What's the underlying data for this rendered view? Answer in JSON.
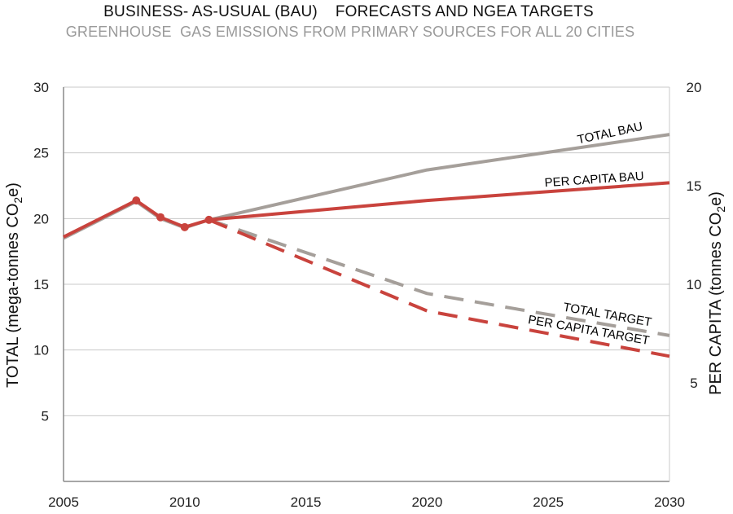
{
  "chart_data": {
    "type": "line",
    "title": "BUSINESS- AS-USUAL (BAU)    FORECASTS AND NGEA TARGETS",
    "subtitle": "GREENHOUSE  GAS EMISSIONS FROM PRIMARY SOURCES FOR ALL 20 CITIES",
    "ylabel_left": {
      "pre": "TOTAL (mega-tonnes CO",
      "sub": "2",
      "post": "e)"
    },
    "ylabel_right": {
      "pre": "PER CAPITA (tonnes CO",
      "sub": "2",
      "post": "e)"
    },
    "xlim": [
      2005,
      2030
    ],
    "ylim_left": [
      0,
      30
    ],
    "ylim_right": [
      0,
      20
    ],
    "x_ticks": [
      2005,
      2010,
      2015,
      2020,
      2025,
      2030
    ],
    "y_ticks_left": [
      5,
      10,
      15,
      20,
      25,
      30
    ],
    "y_ticks_right": [
      5,
      10,
      15,
      20
    ],
    "grid": true,
    "series": [
      {
        "name": "TOTAL BAU",
        "axis": "left",
        "color": "#a59f9a",
        "style": "solid",
        "x": [
          2005,
          2008,
          2009,
          2010,
          2011,
          2020,
          2030
        ],
        "values": [
          18.5,
          21.3,
          20.0,
          19.3,
          19.9,
          23.7,
          26.4
        ]
      },
      {
        "name": "PER CAPITA BAU",
        "axis": "right",
        "color": "#c9433d",
        "style": "solid",
        "x": [
          2005,
          2008,
          2009,
          2010,
          2011,
          2020,
          2030
        ],
        "values": [
          12.4,
          14.25,
          13.4,
          12.9,
          13.27,
          14.25,
          15.15
        ]
      },
      {
        "name": "TOTAL TARGET",
        "axis": "left",
        "color": "#a59f9a",
        "style": "dashed",
        "x": [
          2011,
          2020,
          2030
        ],
        "values": [
          19.9,
          14.3,
          11.1
        ]
      },
      {
        "name": "PER CAPITA TARGET",
        "axis": "right",
        "color": "#c9433d",
        "style": "dashed",
        "x": [
          2011,
          2020,
          2030
        ],
        "values": [
          13.27,
          8.65,
          6.35
        ]
      }
    ],
    "markers": {
      "series": "PER CAPITA BAU",
      "x": [
        2008,
        2009,
        2010,
        2011
      ]
    },
    "annotations": [
      {
        "text": "TOTAL BAU",
        "color": "#a59f9a"
      },
      {
        "text": "PER CAPITA BAU",
        "color": "#c9433d"
      },
      {
        "text": "TOTAL TARGET",
        "color": "#a59f9a"
      },
      {
        "text": "PER CAPITA TARGET",
        "color": "#c9433d"
      }
    ]
  }
}
